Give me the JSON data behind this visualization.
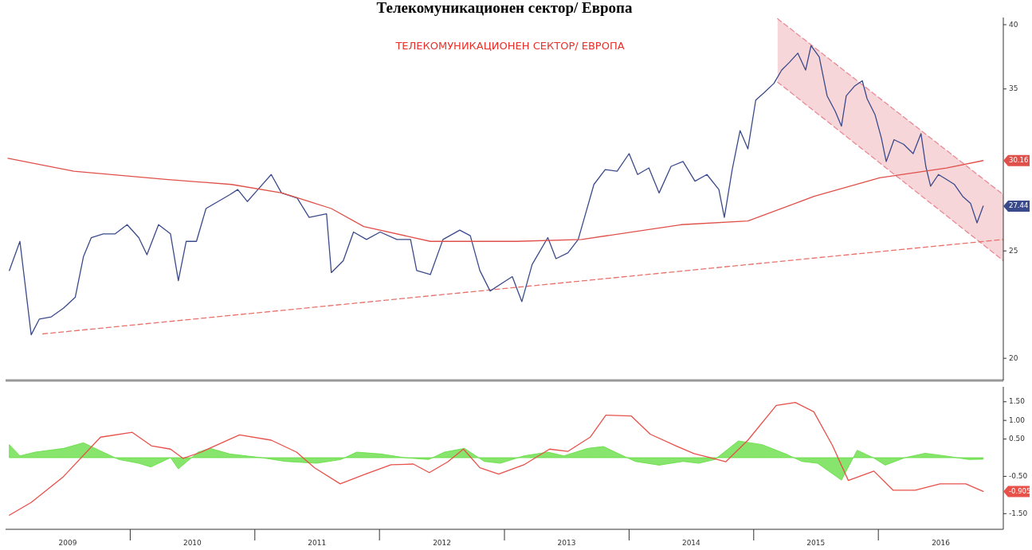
{
  "chart_data": [
    {
      "type": "line",
      "title": "Телекомуникационен сектор/ Европа",
      "annotations": [
        "ТЕЛЕКОМУНИКАЦИОНЕН СЕКТОР/ ЕВРОПА",
        "30.16",
        "27.44"
      ],
      "xlim": [
        "2009-01-01",
        "2017-01-01"
      ],
      "ylim": [
        19.1,
        40.6
      ],
      "yticks": [
        20,
        25,
        35,
        40
      ],
      "log": true,
      "tick_labels": "y",
      "grid": false,
      "marker": "none",
      "series": [
        {
          "color": "#e88a95",
          "line_style": "dashed",
          "x": [
            "2015-03-12",
            "2017-01-01"
          ],
          "values": [
            40.5,
            28.1
          ],
          "lower": [
            35.5,
            24.5
          ],
          "upper": [
            40.5,
            28.1
          ]
        },
        {
          "color": "#e88a95",
          "line_style": "dashed",
          "x": [
            "2015-03-12",
            "2017-01-01"
          ],
          "values": [
            35.5,
            24.5
          ]
        },
        {
          "color": "#e8706a",
          "line_style": "dashed",
          "x": [
            "2009-04-20",
            "2017-01-01"
          ],
          "values": [
            21.04,
            25.6
          ]
        },
        {
          "color": "#3b4a8a",
          "line_style": "solid",
          "x": [
            "2009-01-12",
            "2009-02-12",
            "2009-03-17",
            "2009-04-10",
            "2009-05-15",
            "2009-06-20",
            "2009-07-24",
            "2009-08-17",
            "2009-09-09",
            "2009-10-14",
            "2009-11-18",
            "2009-12-23",
            "2010-01-26",
            "2010-02-19",
            "2010-03-25",
            "2010-04-29",
            "2010-05-22",
            "2010-06-14",
            "2010-07-14",
            "2010-08-11",
            "2010-09-15",
            "2010-10-20",
            "2010-11-12",
            "2010-12-10",
            "2011-01-10",
            "2011-02-18",
            "2011-03-20",
            "2011-05-05",
            "2011-06-09",
            "2011-07-30",
            "2011-08-13",
            "2011-09-17",
            "2011-10-17",
            "2011-11-24",
            "2012-01-03",
            "2012-02-21",
            "2012-04-01",
            "2012-04-19",
            "2012-05-29",
            "2012-07-05",
            "2012-08-23",
            "2012-09-23",
            "2012-10-21",
            "2012-11-20",
            "2012-12-27",
            "2013-01-24",
            "2013-02-21",
            "2013-03-23",
            "2013-05-08",
            "2013-06-01",
            "2013-07-06",
            "2013-08-05",
            "2013-08-28",
            "2013-09-20",
            "2013-10-23",
            "2013-11-27",
            "2014-01-01",
            "2014-01-26",
            "2014-02-28",
            "2014-03-30",
            "2014-05-04",
            "2014-06-08",
            "2014-07-13",
            "2014-08-17",
            "2014-09-21",
            "2014-10-07",
            "2014-10-30",
            "2014-11-22",
            "2014-12-15",
            "2015-01-07",
            "2015-01-30",
            "2015-03-01",
            "2015-03-24",
            "2015-04-16",
            "2015-05-10",
            "2015-06-02",
            "2015-06-18",
            "2015-07-12",
            "2015-08-04",
            "2015-08-28",
            "2015-09-15",
            "2015-09-29",
            "2015-10-23",
            "2015-11-15",
            "2015-11-29",
            "2015-12-22",
            "2016-01-10",
            "2016-01-24",
            "2016-02-16",
            "2016-03-15",
            "2016-04-12",
            "2016-05-05",
            "2016-05-19",
            "2016-06-02",
            "2016-06-25",
            "2016-07-19",
            "2016-08-11",
            "2016-09-04",
            "2016-09-27",
            "2016-10-16",
            "2016-11-03"
          ],
          "values": [
            24.0,
            25.5,
            21.0,
            21.7,
            21.8,
            22.2,
            22.7,
            24.7,
            25.7,
            25.9,
            25.9,
            26.4,
            25.7,
            24.8,
            26.4,
            25.9,
            23.5,
            25.5,
            25.5,
            27.3,
            27.7,
            28.1,
            28.4,
            27.7,
            28.4,
            29.3,
            28.2,
            27.9,
            26.8,
            27.0,
            23.9,
            24.5,
            26.0,
            25.6,
            26.0,
            25.6,
            25.6,
            24.0,
            23.8,
            25.6,
            26.1,
            25.8,
            24.0,
            23.0,
            23.4,
            23.7,
            22.5,
            24.3,
            25.7,
            24.6,
            24.9,
            25.6,
            27.1,
            28.7,
            29.6,
            29.5,
            30.6,
            29.3,
            29.7,
            28.2,
            29.8,
            30.1,
            28.9,
            29.3,
            28.4,
            26.8,
            29.6,
            32.1,
            30.9,
            34.2,
            34.7,
            35.4,
            36.4,
            37.0,
            37.7,
            36.4,
            38.3,
            37.4,
            34.5,
            33.4,
            32.4,
            34.5,
            35.2,
            35.6,
            34.3,
            33.2,
            31.6,
            30.1,
            31.5,
            31.2,
            30.6,
            31.9,
            29.8,
            28.6,
            29.3,
            29.0,
            28.7,
            28.0,
            27.6,
            26.5,
            27.44
          ]
        },
        {
          "color": "#e0504a",
          "line_style": "solid",
          "x": [
            "2009-01-08",
            "2009-07-20",
            "2010-04-15",
            "2010-10-25",
            "2011-03-21",
            "2011-06-09",
            "2011-08-13",
            "2011-11-16",
            "2012-05-29",
            "2012-10-21",
            "2013-02-04",
            "2013-08-15",
            "2014-06-02",
            "2014-12-15",
            "2015-06-27",
            "2016-01-05",
            "2016-07-18",
            "2016-11-03"
          ],
          "values": [
            30.3,
            29.5,
            29.0,
            28.7,
            28.2,
            27.7,
            27.3,
            26.3,
            25.5,
            25.5,
            25.5,
            25.6,
            26.4,
            26.6,
            28.0,
            29.1,
            29.7,
            30.16
          ]
        }
      ]
    },
    {
      "type": "line",
      "annotations": [
        "-0.905"
      ],
      "xlim": [
        "2009-01-01",
        "2017-01-01"
      ],
      "xticks": [
        {
          "value": "2009-07-02",
          "label": "2009"
        },
        {
          "value": "2010-01-01",
          "label": null
        },
        {
          "value": "2010-07-02",
          "label": "2010"
        },
        {
          "value": "2011-01-01",
          "label": null
        },
        {
          "value": "2011-07-02",
          "label": "2011"
        },
        {
          "value": "2012-01-01",
          "label": null
        },
        {
          "value": "2012-07-02",
          "label": "2012"
        },
        {
          "value": "2013-01-01",
          "label": null
        },
        {
          "value": "2013-07-02",
          "label": "2013"
        },
        {
          "value": "2014-01-01",
          "label": null
        },
        {
          "value": "2014-07-02",
          "label": "2014"
        },
        {
          "value": "2015-01-01",
          "label": null
        },
        {
          "value": "2015-07-02",
          "label": "2015"
        },
        {
          "value": "2016-01-01",
          "label": null
        },
        {
          "value": "2016-07-02",
          "label": "2016"
        }
      ],
      "ylim": [
        -1.92,
        1.9
      ],
      "yticks": [
        {
          "value": 1.5,
          "label": "1.50"
        },
        {
          "value": 1,
          "label": "1.00"
        },
        {
          "value": 0.5,
          "label": "0.50"
        },
        {
          "value": -0.5,
          "label": "-0.50"
        },
        {
          "value": -1.5,
          "label": "-1.50"
        }
      ],
      "grid": false,
      "marker": "none",
      "series": [
        {
          "type": "area",
          "color": "#5fdc3c",
          "x": [
            "2009-01-12",
            "2009-02-12",
            "2009-03-29",
            "2009-06-20",
            "2009-08-17",
            "2009-10-02",
            "2009-11-29",
            "2010-01-26",
            "2010-03-02",
            "2010-04-29",
            "2010-05-22",
            "2010-07-19",
            "2010-08-23",
            "2010-10-20",
            "2011-01-21",
            "2011-03-31",
            "2011-07-01",
            "2011-09-10",
            "2011-10-26",
            "2012-01-05",
            "2012-03-15",
            "2012-05-24",
            "2012-07-09",
            "2012-09-06",
            "2012-11-03",
            "2012-12-20",
            "2013-02-27",
            "2013-05-08",
            "2013-06-24",
            "2013-09-02",
            "2013-10-18",
            "2013-12-03",
            "2014-01-19",
            "2014-03-30",
            "2014-06-08",
            "2014-07-24",
            "2014-09-09",
            "2014-11-17",
            "2015-01-26",
            "2015-04-05",
            "2015-05-22",
            "2015-07-07",
            "2015-09-15",
            "2015-10-31",
            "2015-12-17",
            "2016-01-21",
            "2016-03-19",
            "2016-05-17",
            "2016-07-14",
            "2016-09-22",
            "2016-11-03"
          ],
          "values": [
            0.35,
            0.05,
            0.15,
            0.25,
            0.4,
            0.2,
            -0.05,
            -0.15,
            -0.25,
            0.0,
            -0.3,
            0.15,
            0.25,
            0.1,
            0.0,
            -0.1,
            -0.15,
            -0.05,
            0.15,
            0.1,
            0.0,
            -0.05,
            0.15,
            0.25,
            -0.1,
            -0.15,
            0.05,
            0.15,
            0.05,
            0.25,
            0.3,
            0.1,
            -0.1,
            -0.2,
            -0.1,
            -0.15,
            -0.05,
            0.45,
            0.35,
            0.1,
            -0.1,
            -0.15,
            -0.6,
            0.2,
            0.0,
            -0.2,
            0.0,
            0.12,
            0.05,
            -0.05,
            -0.04
          ]
        },
        {
          "color": "#e8504a",
          "line_style": "solid",
          "x": [
            "2009-01-12",
            "2009-03-17",
            "2009-06-17",
            "2009-10-06",
            "2010-01-07",
            "2010-03-04",
            "2010-04-29",
            "2010-06-05",
            "2010-07-28",
            "2010-11-17",
            "2011-02-18",
            "2011-05-03",
            "2011-06-25",
            "2011-09-08",
            "2011-11-21",
            "2012-02-04",
            "2012-04-09",
            "2012-05-26",
            "2012-07-19",
            "2012-09-03",
            "2012-10-21",
            "2012-12-15",
            "2013-02-27",
            "2013-05-13",
            "2013-07-06",
            "2013-09-09",
            "2013-10-25",
            "2014-01-07",
            "2014-03-04",
            "2014-05-18",
            "2014-07-10",
            "2014-09-04",
            "2014-10-11",
            "2014-12-15",
            "2015-03-08",
            "2015-05-03",
            "2015-06-26",
            "2015-08-20",
            "2015-10-05",
            "2015-12-19",
            "2016-02-13",
            "2016-04-18",
            "2016-06-30",
            "2016-09-13",
            "2016-11-03"
          ],
          "values": [
            -1.54,
            -1.2,
            -0.53,
            0.55,
            0.68,
            0.32,
            0.23,
            -0.02,
            0.15,
            0.61,
            0.47,
            0.15,
            -0.27,
            -0.7,
            -0.44,
            -0.19,
            -0.17,
            -0.4,
            -0.11,
            0.23,
            -0.27,
            -0.44,
            -0.19,
            0.23,
            0.17,
            0.55,
            1.14,
            1.12,
            0.63,
            0.32,
            0.11,
            -0.02,
            -0.11,
            0.47,
            1.4,
            1.48,
            1.23,
            0.32,
            -0.61,
            -0.36,
            -0.87,
            -0.87,
            -0.7,
            -0.7,
            -0.905
          ]
        }
      ]
    }
  ]
}
